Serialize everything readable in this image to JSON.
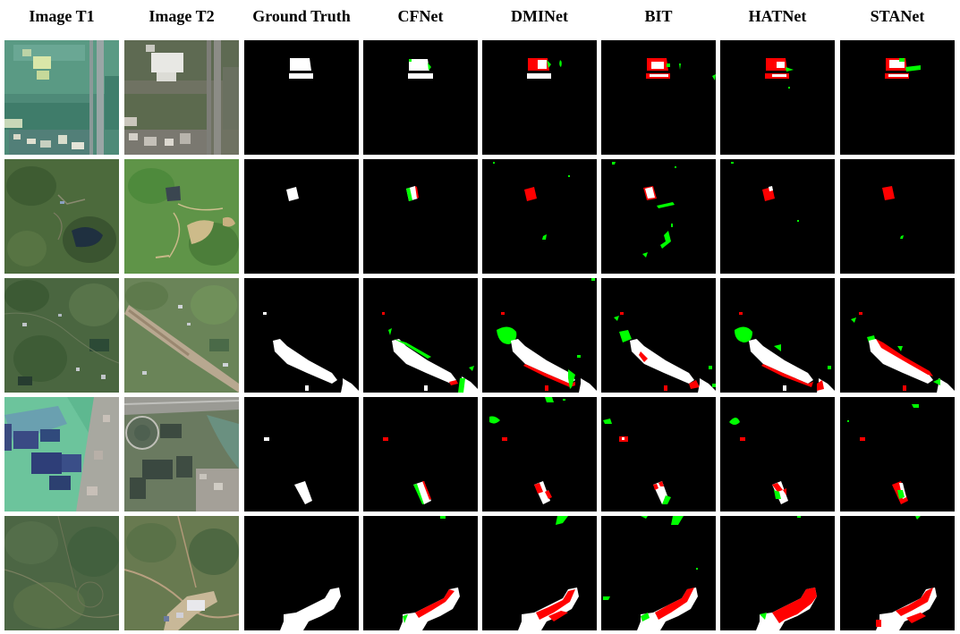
{
  "headers": [
    "Image T1",
    "Image T2",
    "Ground Truth",
    "CFNet",
    "DMINet",
    "BIT",
    "HATNet",
    "STANet"
  ],
  "colors": {
    "change_correct": "#ffffff",
    "false_negative": "#ff0000",
    "false_positive": "#00ff00",
    "background": "#000000"
  },
  "grid": {
    "rows": 5,
    "columns": 8
  }
}
